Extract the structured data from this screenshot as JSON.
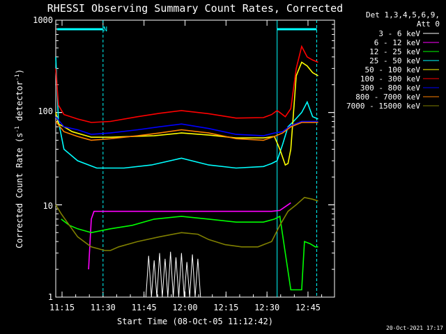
{
  "chart_data": {
    "type": "line",
    "title": "RHESSI Observing Summary Count Rates, Corrected",
    "xlabel": "Start Time (08-Oct-05 11:12:42)",
    "ylabel": "Corrected Count Rate (s",
    "ylabel_sup1": "-1",
    "ylabel_mid": " detector",
    "ylabel_sup2": "-1",
    "ylabel_end": ")",
    "yscale": "log",
    "ylim": [
      1,
      1000
    ],
    "xlim_min": [
      0,
      102
    ],
    "y_ticks": [
      "1",
      "10",
      "100",
      "1000"
    ],
    "x_ticks": [
      {
        "label": "11:15",
        "min": 2.3
      },
      {
        "label": "11:30",
        "min": 17.3
      },
      {
        "label": "11:45",
        "min": 32.3
      },
      {
        "label": "12:00",
        "min": 47.3
      },
      {
        "label": "12:15",
        "min": 62.3
      },
      {
        "label": "12:30",
        "min": 77.3
      },
      {
        "label": "12:45",
        "min": 92.3
      }
    ],
    "legend_header": [
      "Det 1,3,4,5,6,9,",
      "Att 0"
    ],
    "legend_position": "outside-right",
    "footer_date": "20-Oct-2021 17:17",
    "night_label": "N",
    "series": [
      {
        "name": "3 - 6 keV",
        "color": "#ffffff",
        "points": [
          [
            33,
            1
          ],
          [
            34,
            2.8
          ],
          [
            35,
            1
          ],
          [
            36,
            2.5
          ],
          [
            37,
            1
          ],
          [
            38,
            3
          ],
          [
            39,
            1
          ],
          [
            40,
            2.6
          ],
          [
            41,
            1
          ],
          [
            42,
            3.1
          ],
          [
            43,
            1
          ],
          [
            44,
            2.7
          ],
          [
            45,
            1
          ],
          [
            46,
            3
          ],
          [
            47,
            1
          ],
          [
            48,
            2.4
          ],
          [
            49,
            1
          ],
          [
            50,
            2.9
          ],
          [
            51,
            1
          ],
          [
            52,
            2.6
          ],
          [
            53,
            1
          ]
        ]
      },
      {
        "name": "6 - 12 keV",
        "color": "#ff00ff",
        "points": [
          [
            12,
            2
          ],
          [
            13,
            7
          ],
          [
            14,
            8.5
          ],
          [
            20,
            8.5
          ],
          [
            30,
            8.5
          ],
          [
            40,
            8.5
          ],
          [
            50,
            8.5
          ],
          [
            60,
            8.5
          ],
          [
            70,
            8.5
          ],
          [
            79,
            8.5
          ],
          [
            82,
            8.7
          ],
          [
            85,
            10
          ],
          [
            86,
            10.5
          ]
        ]
      },
      {
        "name": "12 - 25 keV",
        "color": "#00ff00",
        "points": [
          [
            2,
            7
          ],
          [
            5,
            6
          ],
          [
            8,
            5.5
          ],
          [
            13,
            5
          ],
          [
            20,
            5.5
          ],
          [
            28,
            6
          ],
          [
            36,
            7
          ],
          [
            46,
            7.5
          ],
          [
            56,
            7
          ],
          [
            66,
            6.5
          ],
          [
            76,
            6.5
          ],
          [
            80,
            7
          ],
          [
            82,
            7.5
          ],
          [
            84,
            3
          ],
          [
            86,
            1.2
          ],
          [
            90,
            1.2
          ],
          [
            91,
            4
          ],
          [
            93,
            3.8
          ],
          [
            95,
            3.5
          ],
          [
            96,
            3.5
          ]
        ]
      },
      {
        "name": "25 - 50 keV",
        "color": "#00ffff",
        "points": [
          [
            0,
            400
          ],
          [
            1,
            80
          ],
          [
            3,
            40
          ],
          [
            8,
            30
          ],
          [
            15,
            25
          ],
          [
            25,
            25
          ],
          [
            35,
            27
          ],
          [
            46,
            32
          ],
          [
            56,
            27
          ],
          [
            66,
            25
          ],
          [
            76,
            26
          ],
          [
            79,
            28
          ],
          [
            81,
            30
          ],
          [
            83,
            45
          ],
          [
            85,
            70
          ],
          [
            87,
            80
          ],
          [
            90,
            100
          ],
          [
            92,
            130
          ],
          [
            94,
            90
          ],
          [
            96,
            85
          ]
        ]
      },
      {
        "name": "50 - 100 keV",
        "color": "#ffff00",
        "points": [
          [
            0,
            100
          ],
          [
            1,
            75
          ],
          [
            3,
            70
          ],
          [
            6,
            62
          ],
          [
            13,
            54
          ],
          [
            20,
            54
          ],
          [
            28,
            55
          ],
          [
            36,
            56
          ],
          [
            46,
            60
          ],
          [
            56,
            57
          ],
          [
            66,
            53
          ],
          [
            76,
            53
          ],
          [
            80,
            55
          ],
          [
            82,
            40
          ],
          [
            84,
            27
          ],
          [
            85,
            28
          ],
          [
            86,
            40
          ],
          [
            88,
            250
          ],
          [
            90,
            350
          ],
          [
            92,
            320
          ],
          [
            94,
            270
          ],
          [
            96,
            250
          ]
        ]
      },
      {
        "name": "100 - 300 keV",
        "color": "#ff0000",
        "points": [
          [
            0,
            300
          ],
          [
            1,
            120
          ],
          [
            3,
            95
          ],
          [
            8,
            85
          ],
          [
            13,
            78
          ],
          [
            20,
            80
          ],
          [
            30,
            90
          ],
          [
            38,
            98
          ],
          [
            46,
            105
          ],
          [
            56,
            97
          ],
          [
            66,
            87
          ],
          [
            76,
            88
          ],
          [
            79,
            95
          ],
          [
            81,
            105
          ],
          [
            82,
            100
          ],
          [
            84,
            90
          ],
          [
            86,
            110
          ],
          [
            88,
            300
          ],
          [
            90,
            520
          ],
          [
            92,
            400
          ],
          [
            94,
            370
          ],
          [
            96,
            350
          ]
        ]
      },
      {
        "name": "300 - 800 keV",
        "color": "#0000ff",
        "points": [
          [
            0,
            90
          ],
          [
            3,
            70
          ],
          [
            8,
            65
          ],
          [
            13,
            58
          ],
          [
            20,
            60
          ],
          [
            30,
            65
          ],
          [
            38,
            70
          ],
          [
            46,
            75
          ],
          [
            56,
            67
          ],
          [
            66,
            58
          ],
          [
            76,
            56
          ],
          [
            80,
            60
          ],
          [
            83,
            62
          ],
          [
            86,
            72
          ],
          [
            90,
            80
          ],
          [
            94,
            80
          ],
          [
            96,
            80
          ]
        ]
      },
      {
        "name": "800 - 7000 keV",
        "color": "#ff8000",
        "points": [
          [
            0,
            80
          ],
          [
            3,
            62
          ],
          [
            8,
            55
          ],
          [
            13,
            50
          ],
          [
            20,
            52
          ],
          [
            30,
            56
          ],
          [
            38,
            60
          ],
          [
            46,
            65
          ],
          [
            56,
            60
          ],
          [
            66,
            52
          ],
          [
            76,
            50
          ],
          [
            80,
            55
          ],
          [
            83,
            60
          ],
          [
            86,
            70
          ],
          [
            90,
            78
          ],
          [
            94,
            78
          ],
          [
            96,
            78
          ]
        ]
      },
      {
        "name": "7000 - 15000 keV",
        "color": "#808000",
        "points": [
          [
            0,
            10
          ],
          [
            2,
            8
          ],
          [
            5,
            6
          ],
          [
            8,
            4.5
          ],
          [
            13,
            3.5
          ],
          [
            18,
            3.2
          ],
          [
            20,
            3.2
          ],
          [
            23,
            3.5
          ],
          [
            30,
            4
          ],
          [
            38,
            4.5
          ],
          [
            46,
            5
          ],
          [
            52,
            4.8
          ],
          [
            56,
            4.2
          ],
          [
            62,
            3.7
          ],
          [
            68,
            3.5
          ],
          [
            74,
            3.5
          ],
          [
            79,
            4
          ],
          [
            82,
            6
          ],
          [
            85,
            8.5
          ],
          [
            88,
            10
          ],
          [
            91,
            12
          ],
          [
            94,
            11.5
          ],
          [
            96,
            11
          ]
        ]
      }
    ]
  }
}
